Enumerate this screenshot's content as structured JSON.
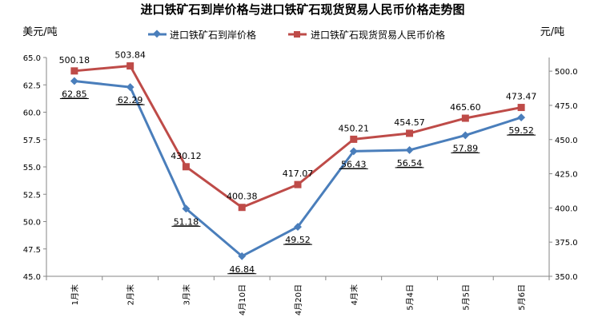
{
  "chart_data": {
    "type": "line",
    "title": "进口铁矿石到岸价格与进口铁矿石现货贸易人民币价格走势图",
    "ylabel_left": "美元/吨",
    "ylabel_right": "元/吨",
    "categories": [
      "1月末",
      "2月末",
      "3月末",
      "4月10日",
      "4月20日",
      "4月末",
      "5月4日",
      "5月5日",
      "5月6日"
    ],
    "y_left": {
      "lim": [
        45,
        65
      ],
      "step": 2.5,
      "ticks": [
        "45.0",
        "47.5",
        "50.0",
        "52.5",
        "55.0",
        "57.5",
        "60.0",
        "62.5",
        "65.0"
      ]
    },
    "y_right": {
      "lim": [
        350,
        510
      ],
      "step": 25,
      "ticks": [
        "350.0",
        "375.0",
        "400.0",
        "425.0",
        "450.0",
        "475.0",
        "500.0"
      ]
    },
    "grid": false,
    "legend": "top-center",
    "series": [
      {
        "name": "进口铁矿石到岸价格",
        "axis": "left",
        "color": "#4a7ebb",
        "marker": "diamond",
        "values": [
          62.85,
          62.29,
          51.18,
          46.84,
          49.52,
          56.43,
          56.54,
          57.89,
          59.52
        ],
        "labels": [
          "62.85",
          "62.29",
          "51.18",
          "46.84",
          "49.52",
          "56.43",
          "56.54",
          "57.89",
          "59.52"
        ]
      },
      {
        "name": "进口铁矿石现货贸易人民币价格",
        "axis": "right",
        "color": "#be4b48",
        "marker": "square",
        "values": [
          500.18,
          503.84,
          430.12,
          400.38,
          417.07,
          450.21,
          454.57,
          465.6,
          473.47
        ],
        "labels": [
          "500.18",
          "503.84",
          "430.12",
          "400.38",
          "417.07",
          "450.21",
          "454.57",
          "465.60",
          "473.47"
        ]
      }
    ]
  }
}
